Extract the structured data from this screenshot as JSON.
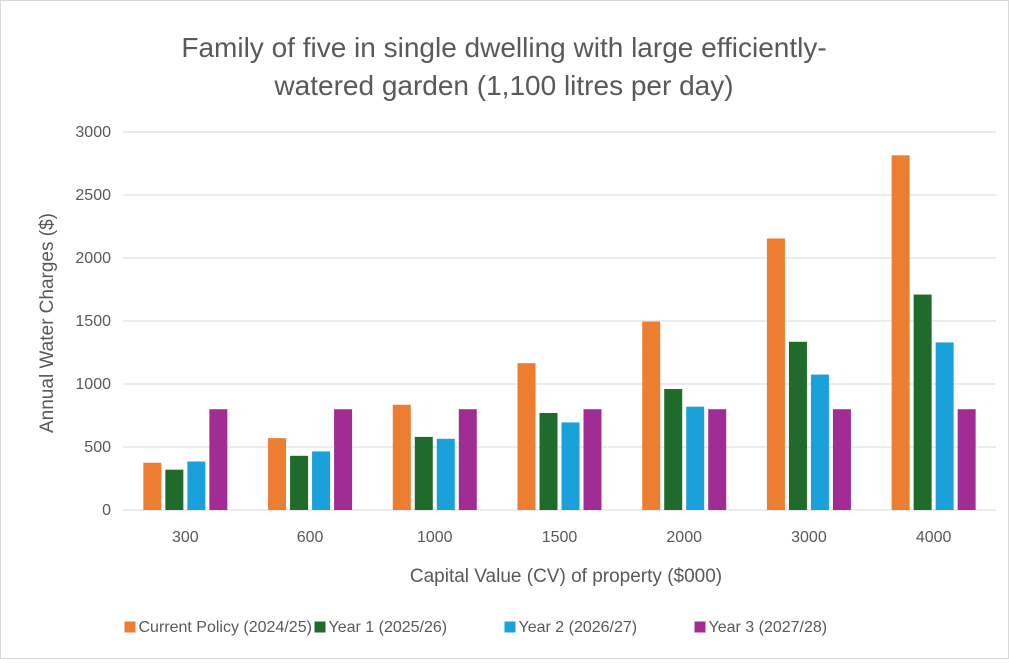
{
  "chart_data": {
    "type": "bar",
    "title_lines": [
      "Family of five in single dwelling with large efficiently-",
      "watered garden (1,100 litres per day)"
    ],
    "xlabel": "Capital Value (CV) of property ($000)",
    "ylabel": "Annual Water Charges ($)",
    "categories": [
      "300",
      "600",
      "1000",
      "1500",
      "2000",
      "3000",
      "4000"
    ],
    "ylim": [
      0,
      3000
    ],
    "yticks": [
      0,
      500,
      1000,
      1500,
      2000,
      2500,
      3000
    ],
    "grid": true,
    "legend_position": "bottom",
    "series": [
      {
        "name": "Current Policy (2024/25)",
        "color": "#ED7D31",
        "values": [
          375,
          570,
          835,
          1165,
          1495,
          2155,
          2815
        ]
      },
      {
        "name": "Year 1 (2025/26)",
        "color": "#1E6B2B",
        "values": [
          320,
          430,
          580,
          770,
          960,
          1335,
          1710
        ]
      },
      {
        "name": "Year 2 (2026/27)",
        "color": "#1AA1DC",
        "values": [
          385,
          465,
          565,
          695,
          820,
          1075,
          1330
        ]
      },
      {
        "name": "Year 3 (2027/28)",
        "color": "#A12D94",
        "values": [
          800,
          800,
          800,
          800,
          800,
          800,
          800
        ]
      }
    ]
  }
}
